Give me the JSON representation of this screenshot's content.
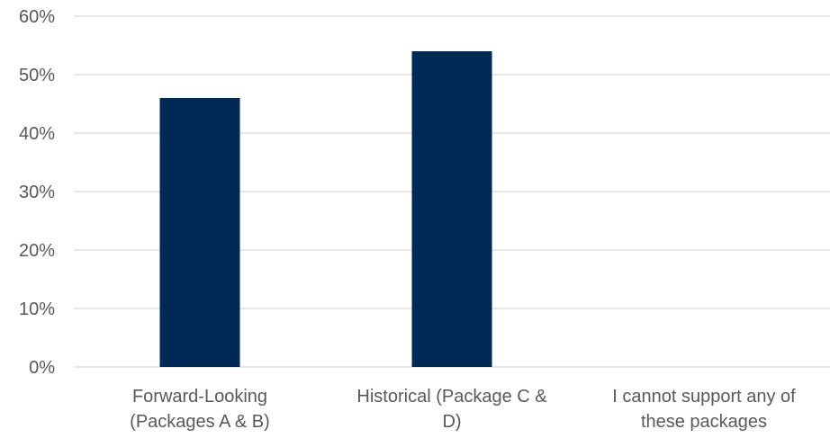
{
  "chart_data": {
    "type": "bar",
    "categories": [
      [
        "Forward-Looking",
        "(Packages A & B)"
      ],
      [
        "Historical (Package C &",
        "D)"
      ],
      [
        "I cannot support any of",
        "these packages"
      ]
    ],
    "series": [
      {
        "values": [
          46,
          54,
          0
        ]
      }
    ],
    "ylim": [
      0,
      60
    ],
    "y_ticks": [
      0,
      10,
      20,
      30,
      40,
      50,
      60
    ],
    "y_tick_labels": [
      "0%",
      "10%",
      "20%",
      "30%",
      "40%",
      "50%",
      "60%"
    ],
    "grid": true,
    "bar_color": "#002855",
    "grid_color": "#d9d9d9",
    "text_color": "#595959"
  }
}
